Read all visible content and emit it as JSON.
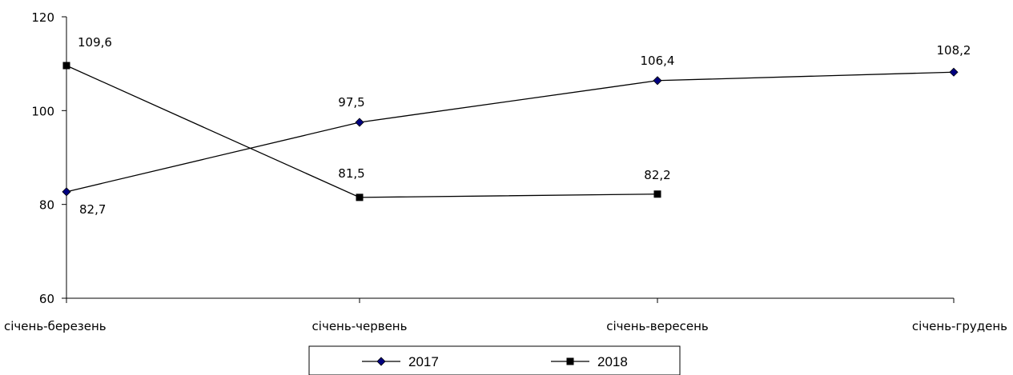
{
  "chart_data": {
    "type": "line",
    "categories": [
      "січень-березень",
      "січень-червень",
      "січень-вересень",
      "січень-грудень"
    ],
    "ylim": [
      60,
      120
    ],
    "yticks": [
      60,
      80,
      100,
      120
    ],
    "ytick_labels": [
      "60",
      "80",
      "100",
      "120"
    ],
    "grid": false,
    "legend_position": "bottom",
    "series": [
      {
        "name": "2017",
        "values": [
          82.7,
          97.5,
          106.4,
          108.2
        ],
        "labels": [
          "82,7",
          "97,5",
          "106,4",
          "108,2"
        ],
        "marker": "diamond",
        "color": "#000000",
        "marker_color": "#000080"
      },
      {
        "name": "2018",
        "values": [
          109.6,
          81.5,
          82.2,
          null
        ],
        "labels": [
          "109,6",
          "81,5",
          "82,2",
          null
        ],
        "marker": "square",
        "color": "#000000",
        "marker_color": "#000000"
      }
    ]
  }
}
